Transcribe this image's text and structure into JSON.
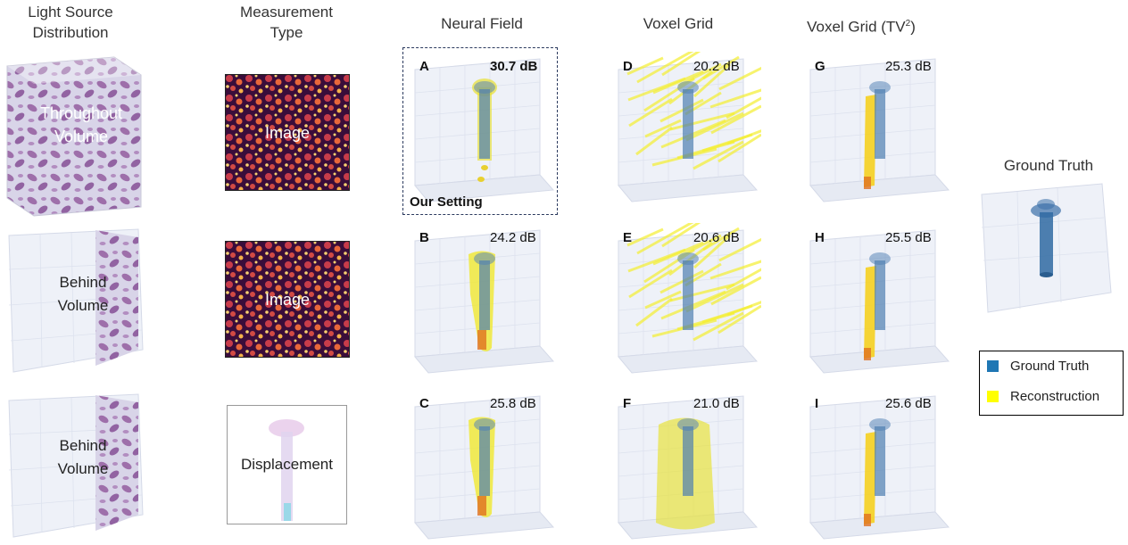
{
  "headers": {
    "light_source": [
      "Light Source",
      "Distribution"
    ],
    "measurement": [
      "Measurement",
      "Type"
    ],
    "neural_field": "Neural Field",
    "voxel_grid": "Voxel Grid",
    "voxel_grid_tv": "Voxel Grid (TV",
    "voxel_grid_tv_sup": "2",
    "voxel_grid_tv_close": ")",
    "ground_truth": "Ground Truth"
  },
  "rows": [
    {
      "light": [
        "Throughout",
        "Volume"
      ],
      "measurement": "Image"
    },
    {
      "light": [
        "Behind",
        "Volume"
      ],
      "measurement": "Image"
    },
    {
      "light": [
        "Behind",
        "Volume"
      ],
      "measurement": "Displacement"
    }
  ],
  "panels": [
    {
      "letter": "A",
      "db": "30.7 dB",
      "bold": true
    },
    {
      "letter": "B",
      "db": "24.2 dB"
    },
    {
      "letter": "C",
      "db": "25.8 dB"
    },
    {
      "letter": "D",
      "db": "20.2 dB"
    },
    {
      "letter": "E",
      "db": "20.6 dB"
    },
    {
      "letter": "F",
      "db": "21.0 dB"
    },
    {
      "letter": "G",
      "db": "25.3 dB"
    },
    {
      "letter": "H",
      "db": "25.5 dB"
    },
    {
      "letter": "I",
      "db": "25.6 dB"
    }
  ],
  "our_setting": "Our Setting",
  "legend": {
    "ground_truth": "Ground Truth",
    "reconstruction": "Reconstruction",
    "ground_truth_color": "#1f77b4",
    "reconstruction_color": "#ffff00"
  }
}
